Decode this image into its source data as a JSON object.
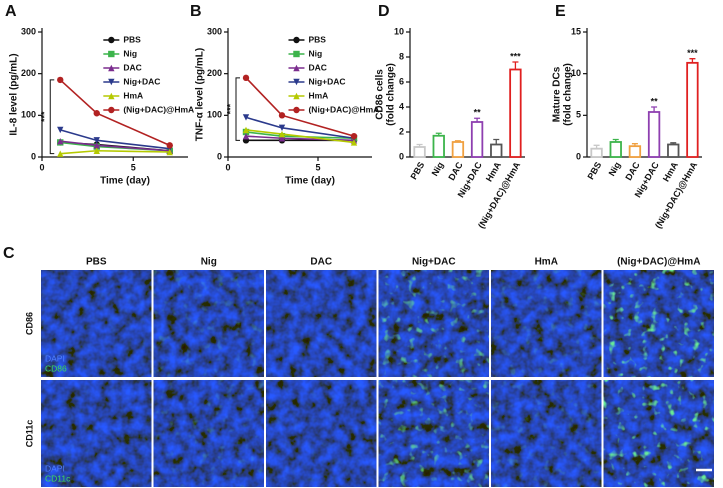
{
  "chart_data": [
    {
      "panel_label": "A",
      "type": "line",
      "ylabel": "IL-8 level (pg/mL)",
      "xlabel": "Time (day)",
      "x": [
        1,
        3,
        7
      ],
      "xlim": [
        0,
        8
      ],
      "xticks": [
        0,
        5
      ],
      "ylim": [
        0,
        300
      ],
      "yticks": [
        0,
        100,
        200,
        300
      ],
      "bracket_label": "***",
      "legend": "upper right",
      "series": [
        {
          "name": "PBS",
          "color": "#111111",
          "marker": "circle",
          "values": [
            35,
            30,
            15
          ]
        },
        {
          "name": "Nig",
          "color": "#3cb44b",
          "marker": "square",
          "values": [
            35,
            25,
            15
          ]
        },
        {
          "name": "DAC",
          "color": "#7b2d8e",
          "marker": "triangle",
          "values": [
            38,
            28,
            15
          ]
        },
        {
          "name": "Nig+DAC",
          "color": "#2b3a8c",
          "marker": "triangle-down",
          "values": [
            65,
            40,
            20
          ]
        },
        {
          "name": "HmA",
          "color": "#b5c900",
          "marker": "triangle",
          "values": [
            8,
            15,
            12
          ]
        },
        {
          "name": "(Nig+DAC)@HmA",
          "color": "#b22222",
          "marker": "circle",
          "values": [
            185,
            105,
            28
          ]
        }
      ]
    },
    {
      "panel_label": "B",
      "type": "line",
      "ylabel": "TNF-α level (pg/mL)",
      "xlabel": "Time (day)",
      "x": [
        1,
        3,
        7
      ],
      "xlim": [
        0,
        8
      ],
      "xticks": [
        0,
        5
      ],
      "ylim": [
        0,
        300
      ],
      "yticks": [
        0,
        100,
        200,
        300
      ],
      "bracket_label": "***",
      "legend": "upper right",
      "series": [
        {
          "name": "PBS",
          "color": "#111111",
          "marker": "circle",
          "values": [
            40,
            40,
            40
          ]
        },
        {
          "name": "Nig",
          "color": "#3cb44b",
          "marker": "square",
          "values": [
            60,
            50,
            45
          ]
        },
        {
          "name": "DAC",
          "color": "#7b2d8e",
          "marker": "triangle",
          "values": [
            50,
            45,
            40
          ]
        },
        {
          "name": "Nig+DAC",
          "color": "#2b3a8c",
          "marker": "triangle-down",
          "values": [
            95,
            70,
            45
          ]
        },
        {
          "name": "HmA",
          "color": "#b5c900",
          "marker": "triangle",
          "values": [
            65,
            55,
            35
          ]
        },
        {
          "name": "(Nig+DAC)@HmA",
          "color": "#b22222",
          "marker": "circle",
          "values": [
            190,
            100,
            50
          ]
        }
      ]
    },
    {
      "panel_label": "D",
      "type": "bar",
      "ylabel": [
        "CD86 cells",
        "(fold change)"
      ],
      "categories": [
        "PBS",
        "Nig",
        "DAC",
        "Nig+DAC",
        "HmA",
        "(Nig+DAC)@HmA"
      ],
      "colors": [
        "#c8c8c8",
        "#3cb44b",
        "#f0a040",
        "#8e3fb0",
        "#555555",
        "#e02020"
      ],
      "values": [
        0.8,
        1.7,
        1.2,
        2.8,
        1.0,
        7.0
      ],
      "errors": [
        0.2,
        0.2,
        0.1,
        0.3,
        0.4,
        0.6
      ],
      "significance": [
        null,
        null,
        null,
        "**",
        null,
        "***"
      ],
      "ylim": [
        0,
        10
      ],
      "yticks": [
        0,
        2,
        4,
        6,
        8,
        10
      ]
    },
    {
      "panel_label": "E",
      "type": "bar",
      "ylabel": [
        "Mature DCs",
        "(fold change)"
      ],
      "categories": [
        "PBS",
        "Nig",
        "DAC",
        "Nig+DAC",
        "HmA",
        "(Nig+DAC)@HmA"
      ],
      "colors": [
        "#c8c8c8",
        "#3cb44b",
        "#f0a040",
        "#8e3fb0",
        "#555555",
        "#e02020"
      ],
      "values": [
        1.0,
        1.8,
        1.3,
        5.4,
        1.5,
        11.3
      ],
      "errors": [
        0.4,
        0.3,
        0.3,
        0.6,
        0.2,
        0.5
      ],
      "significance": [
        null,
        null,
        null,
        "**",
        null,
        "***"
      ],
      "ylim": [
        0,
        15
      ],
      "yticks": [
        0,
        5,
        10,
        15
      ]
    }
  ],
  "panel_c": {
    "panel_label": "C",
    "columns": [
      "PBS",
      "Nig",
      "DAC",
      "Nig+DAC",
      "HmA",
      "(Nig+DAC)@HmA"
    ],
    "rows": [
      {
        "label": "CD86",
        "legend": [
          "DAPI",
          "CD86"
        ]
      },
      {
        "label": "CD11c",
        "legend": [
          "DAPI",
          "CD11c"
        ]
      }
    ]
  }
}
